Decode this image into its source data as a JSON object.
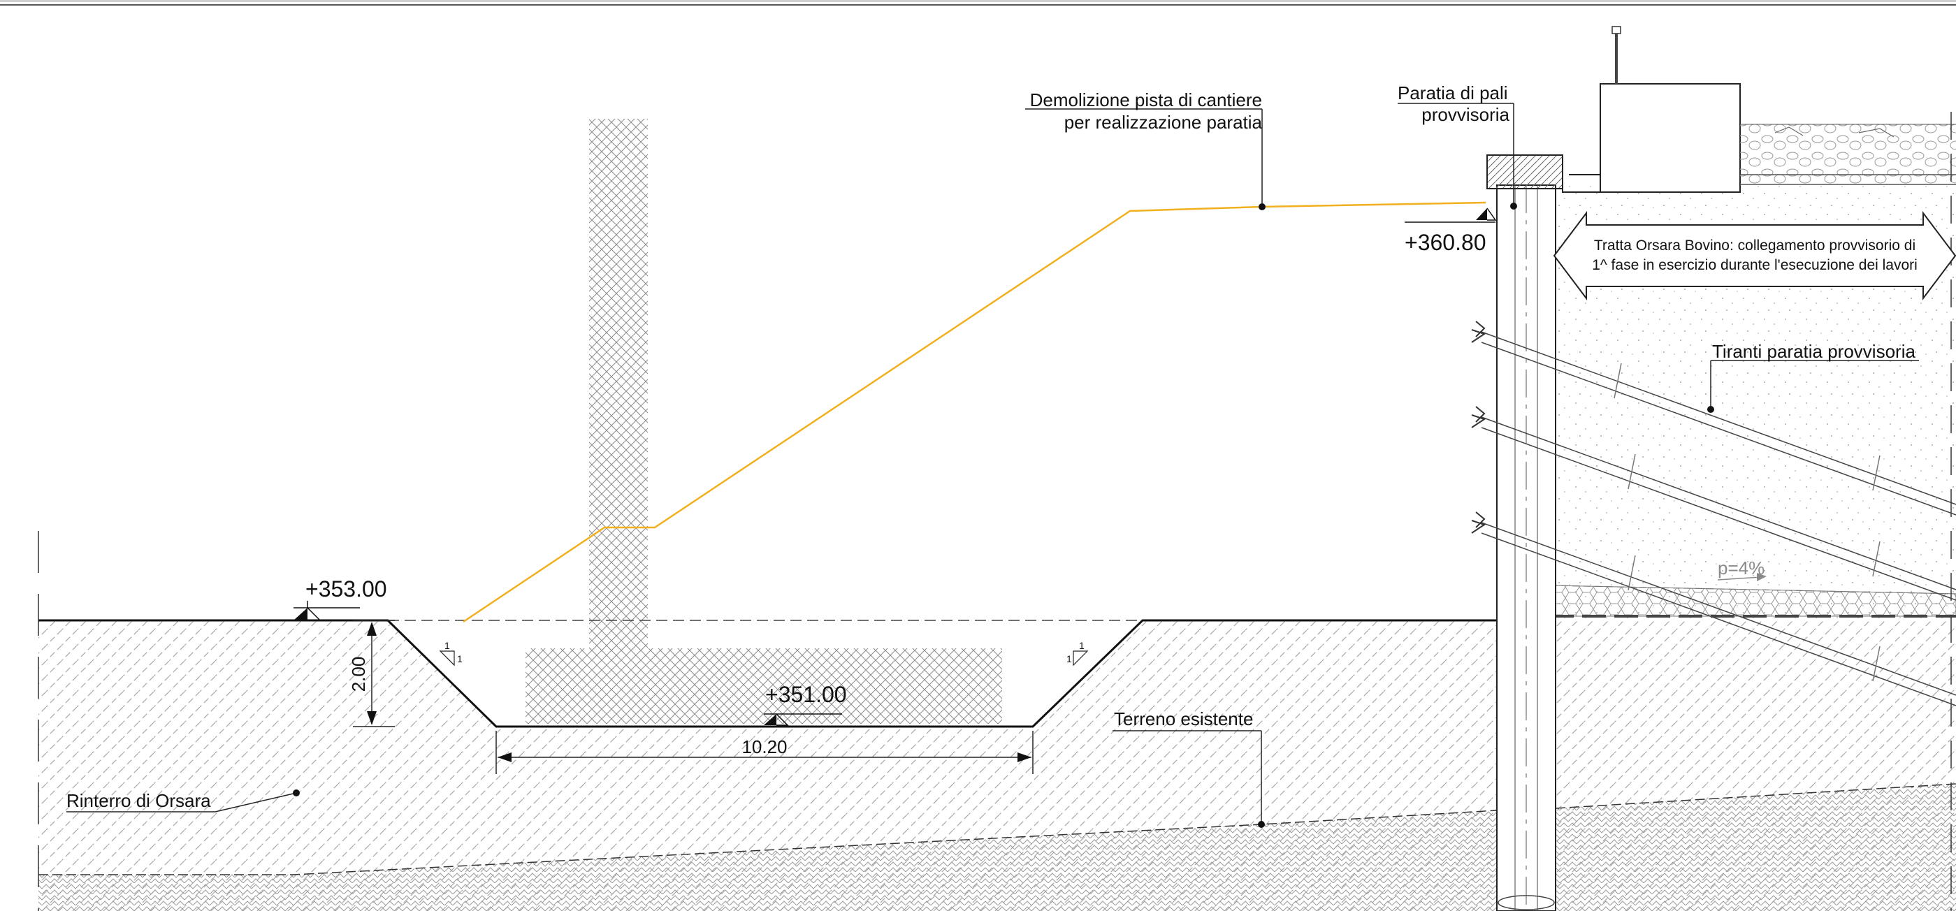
{
  "annotations": {
    "demolizione_line1": "Demolizione pista di cantiere",
    "demolizione_line2": "per realizzazione paratia",
    "paratia_line1": "Paratia di pali",
    "paratia_line2": "provvisoria",
    "tratta_line1": "Tratta Orsara Bovino: collegamento provvisorio di",
    "tratta_line2": "1^ fase in esercizio durante l'esecuzione dei lavori",
    "tiranti": "Tiranti paratia provvisoria",
    "slope": "p=4%",
    "terreno": "Terreno esistente",
    "rinterro": "Rinterro di Orsara"
  },
  "elevations": {
    "top_wall": "+360.80",
    "ground": "+353.00",
    "trench_bottom": "+351.00"
  },
  "dimensions": {
    "trench_depth": "2.00",
    "trench_width": "10.20"
  },
  "slope_marks": {
    "left_top": "1",
    "left_side": "1",
    "right_top": "1",
    "right_side": "1"
  },
  "colors": {
    "demolition_line": "#f2b01e",
    "linework": "#111111",
    "hatch": "#9a9a9a"
  }
}
